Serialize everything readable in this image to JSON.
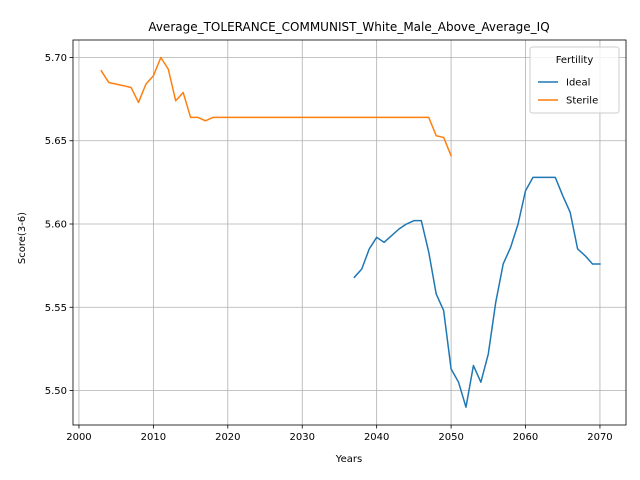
{
  "chart_data": {
    "type": "line",
    "title": "Average_TOLERANCE_COMMUNIST_White_Male_Above_Average_IQ",
    "xlabel": "Years",
    "ylabel": "Score(3-6)",
    "xlim": [
      1999.2,
      2073.5
    ],
    "ylim": [
      5.4793,
      5.7105
    ],
    "xticks": [
      2000,
      2010,
      2020,
      2030,
      2040,
      2050,
      2060,
      2070
    ],
    "yticks": [
      5.5,
      5.55,
      5.6,
      5.65,
      5.7
    ],
    "xtick_labels": [
      "2000",
      "2010",
      "2020",
      "2030",
      "2040",
      "2050",
      "2060",
      "2070"
    ],
    "ytick_labels": [
      "5.50",
      "5.55",
      "5.60",
      "5.65",
      "5.70"
    ],
    "grid": true,
    "legend": {
      "title": "Fertility",
      "position": "top-right"
    },
    "series": [
      {
        "name": "Ideal",
        "color": "#1f77b4",
        "x": [
          2037,
          2038,
          2039,
          2040,
          2041,
          2042,
          2043,
          2044,
          2045,
          2046,
          2047,
          2048,
          2049,
          2050,
          2051,
          2052,
          2053,
          2054,
          2055,
          2056,
          2057,
          2058,
          2059,
          2060,
          2061,
          2062,
          2063,
          2064,
          2065,
          2066,
          2067,
          2068,
          2069,
          2070
        ],
        "y": [
          5.568,
          5.573,
          5.585,
          5.592,
          5.589,
          5.593,
          5.597,
          5.6,
          5.602,
          5.602,
          5.583,
          5.558,
          5.548,
          5.513,
          5.505,
          5.49,
          5.515,
          5.505,
          5.522,
          5.553,
          5.576,
          5.586,
          5.6,
          5.62,
          5.628,
          5.628,
          5.628,
          5.628,
          5.617,
          5.607,
          5.585,
          5.581,
          5.576,
          5.576
        ]
      },
      {
        "name": "Sterile",
        "color": "#ff7f0e",
        "x": [
          2003,
          2004,
          2005,
          2006,
          2007,
          2008,
          2009,
          2010,
          2011,
          2012,
          2013,
          2014,
          2015,
          2016,
          2017,
          2018,
          2019,
          2020,
          2025,
          2030,
          2035,
          2040,
          2045,
          2046,
          2047,
          2048,
          2049,
          2050
        ],
        "y": [
          5.692,
          5.685,
          5.684,
          5.683,
          5.682,
          5.673,
          5.684,
          5.689,
          5.7,
          5.693,
          5.674,
          5.679,
          5.664,
          5.664,
          5.662,
          5.664,
          5.664,
          5.664,
          5.664,
          5.664,
          5.664,
          5.664,
          5.664,
          5.664,
          5.664,
          5.653,
          5.652,
          5.641
        ]
      }
    ]
  }
}
